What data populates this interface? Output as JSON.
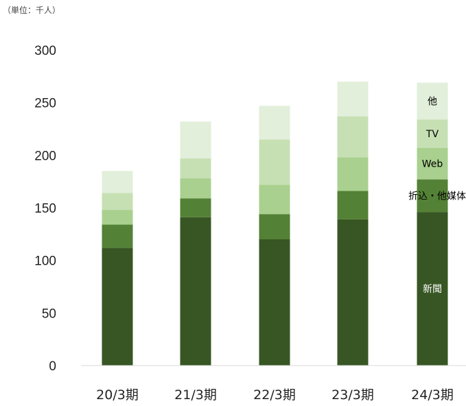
{
  "unit_note": "（単位：千人）",
  "chart_data": {
    "type": "bar",
    "stacked": true,
    "categories": [
      "20/3期",
      "21/3期",
      "22/3期",
      "23/3期",
      "24/3期"
    ],
    "series": [
      {
        "name": "新聞",
        "color": "#375623",
        "label_color": "#ffffff",
        "values": [
          112,
          141,
          120,
          139,
          146
        ]
      },
      {
        "name": "折込・他媒体",
        "color": "#538135",
        "label_color": "#000000",
        "values": [
          22,
          18,
          24,
          27,
          31
        ]
      },
      {
        "name": "Web",
        "color": "#a9d08e",
        "label_color": "#000000",
        "values": [
          14,
          19,
          28,
          32,
          30
        ]
      },
      {
        "name": "TV",
        "color": "#c6e0b4",
        "label_color": "#000000",
        "values": [
          16,
          19,
          43,
          39,
          27
        ]
      },
      {
        "name": "他",
        "color": "#e2efda",
        "label_color": "#000000",
        "values": [
          21,
          35,
          32,
          33,
          35
        ]
      }
    ],
    "ylim": [
      0,
      300
    ],
    "yticks": [
      0,
      50,
      100,
      150,
      200,
      250,
      300
    ],
    "grid": false,
    "legend": "inline labels on last bar"
  }
}
